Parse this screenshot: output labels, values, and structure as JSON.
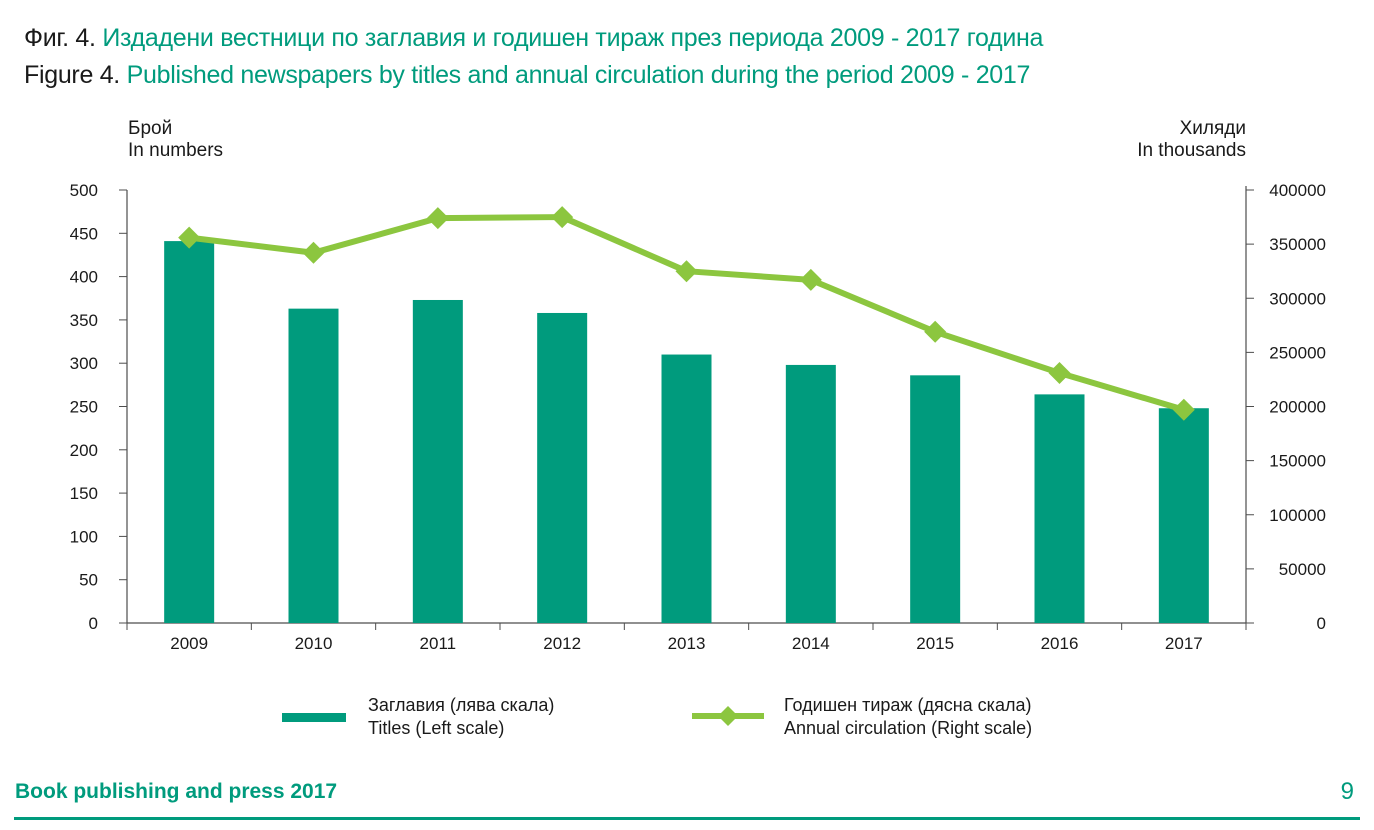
{
  "header": {
    "bg_prefix": "Фиг. 4.",
    "bg_title": "Издадени вестници по заглавия и годишен тираж през периода 2009 - 2017 година",
    "en_prefix": "Figure 4.",
    "en_title": "Published newspapers by titles and annual circulation during the period 2009 - 2017"
  },
  "colors": {
    "accent": "#009b7d",
    "bar": "#009b7d",
    "line": "#8cc63f",
    "axis": "#4d4d4d"
  },
  "chart_data": {
    "type": "bar",
    "categories": [
      "2009",
      "2010",
      "2011",
      "2012",
      "2013",
      "2014",
      "2015",
      "2016",
      "2017"
    ],
    "series": [
      {
        "name": "Заглавия (лява скала) / Titles (Left scale)",
        "type": "bar",
        "axis": "left",
        "values": [
          441,
          363,
          373,
          358,
          310,
          298,
          286,
          264,
          248
        ]
      },
      {
        "name": "Годишен тираж (дясна скала) / Annual circulation (Right scale)",
        "type": "line",
        "axis": "right",
        "values": [
          356000,
          342000,
          374000,
          375000,
          325000,
          317000,
          269000,
          231000,
          197000
        ]
      }
    ],
    "y_left": {
      "label_bg": "Брой",
      "label_en": "In numbers",
      "range": [
        0,
        500
      ],
      "ticks": [
        "0",
        "50",
        "100",
        "150",
        "200",
        "250",
        "300",
        "350",
        "400",
        "450",
        "500"
      ]
    },
    "y_right": {
      "label_bg": "Хиляди",
      "label_en": "In thousands",
      "range": [
        0,
        400000
      ],
      "ticks": [
        "0",
        "50000",
        "100000",
        "150000",
        "200000",
        "250000",
        "300000",
        "350000",
        "400000"
      ]
    },
    "grid": false,
    "legend_position": "bottom"
  },
  "legend": {
    "bar_bg": "Заглавия (лява скала)",
    "bar_en": "Titles (Left scale)",
    "line_bg": "Годишен тираж (дясна скала)",
    "line_en": "Annual circulation (Right scale)"
  },
  "footer": {
    "title": "Book publishing and press 2017",
    "page": "9"
  }
}
